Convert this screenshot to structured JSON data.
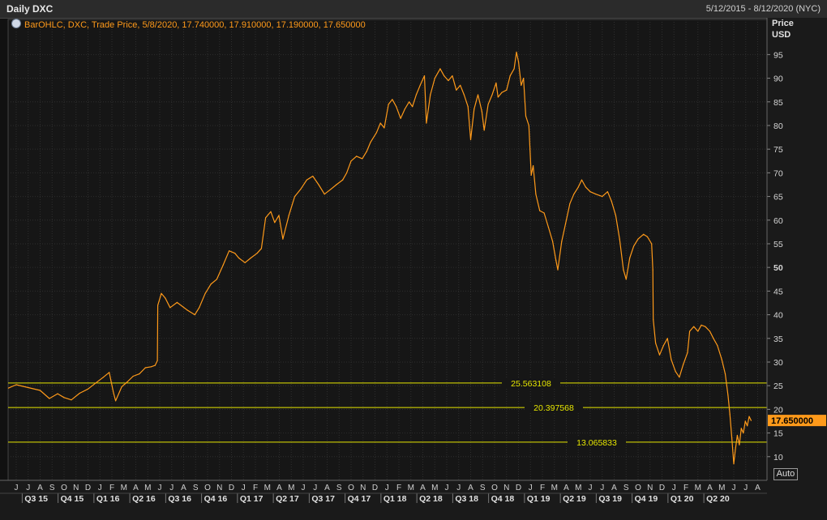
{
  "header": {
    "title": "Daily DXC",
    "date_range": "5/12/2015 - 8/12/2020 (NYC)"
  },
  "legend": {
    "text": "BarOHLC, DXC, Trade Price, 5/8/2020, 17.740000, 17.910000, 17.190000, 17.650000"
  },
  "axis": {
    "y_title_1": "Price",
    "y_title_2": "USD",
    "auto_label": "Auto"
  },
  "colors": {
    "series": "#ff9a1a",
    "hline": "#e6e600",
    "last_price_bg": "#ff9a1a"
  },
  "chart_data": {
    "type": "line",
    "ylim": [
      5,
      99
    ],
    "y_ticks": [
      10,
      15,
      20,
      25,
      30,
      35,
      40,
      45,
      50,
      55,
      60,
      65,
      70,
      75,
      80,
      85,
      90,
      95
    ],
    "x_month_labels": [
      "J",
      "J",
      "A",
      "S",
      "O",
      "N",
      "D",
      "J",
      "F",
      "M",
      "A",
      "M",
      "J",
      "J",
      "A",
      "S",
      "O",
      "N",
      "D",
      "J",
      "F",
      "M",
      "A",
      "M",
      "J",
      "J",
      "A",
      "S",
      "O",
      "N",
      "D",
      "J",
      "F",
      "M",
      "A",
      "M",
      "J",
      "J",
      "A",
      "S",
      "O",
      "N",
      "D",
      "J",
      "F",
      "M",
      "A",
      "M",
      "J",
      "J",
      "A",
      "S",
      "O",
      "N",
      "D",
      "J",
      "F",
      "M",
      "A",
      "M",
      "J",
      "J",
      "A"
    ],
    "x_quarter_labels": [
      "Q3 15",
      "Q4 15",
      "Q1 16",
      "Q2 16",
      "Q3 16",
      "Q4 16",
      "Q1 17",
      "Q2 17",
      "Q3 17",
      "Q4 17",
      "Q1 18",
      "Q2 18",
      "Q3 18",
      "Q4 18",
      "Q1 19",
      "Q2 19",
      "Q3 19",
      "Q4 19",
      "Q1 20",
      "Q2 20"
    ],
    "last_price": "17.650000",
    "horizontal_lines": [
      {
        "value": 25.563108,
        "label": "25.563108"
      },
      {
        "value": 20.397568,
        "label": "20.397568"
      },
      {
        "value": 13.065833,
        "label": "13.065833"
      }
    ],
    "series": [
      {
        "points": [
          [
            "2015-05-12",
            24.5
          ],
          [
            "2015-06-01",
            25.2
          ],
          [
            "2015-07-01",
            24.6
          ],
          [
            "2015-08-01",
            24.0
          ],
          [
            "2015-08-25",
            22.3
          ],
          [
            "2015-09-15",
            23.3
          ],
          [
            "2015-10-01",
            22.5
          ],
          [
            "2015-10-20",
            22.0
          ],
          [
            "2015-11-10",
            23.4
          ],
          [
            "2015-12-01",
            24.3
          ],
          [
            "2015-12-20",
            25.5
          ],
          [
            "2016-01-10",
            26.8
          ],
          [
            "2016-01-25",
            27.8
          ],
          [
            "2016-02-05",
            23.5
          ],
          [
            "2016-02-10",
            21.8
          ],
          [
            "2016-02-25",
            24.8
          ],
          [
            "2016-03-10",
            25.8
          ],
          [
            "2016-03-25",
            27.0
          ],
          [
            "2016-04-10",
            27.5
          ],
          [
            "2016-04-25",
            28.8
          ],
          [
            "2016-05-10",
            29.0
          ],
          [
            "2016-05-20",
            29.3
          ],
          [
            "2016-05-26",
            30.3
          ],
          [
            "2016-05-27",
            42.0
          ],
          [
            "2016-06-05",
            44.5
          ],
          [
            "2016-06-15",
            43.5
          ],
          [
            "2016-06-27",
            41.5
          ],
          [
            "2016-07-15",
            42.6
          ],
          [
            "2016-08-10",
            41.0
          ],
          [
            "2016-08-30",
            40.0
          ],
          [
            "2016-09-10",
            41.5
          ],
          [
            "2016-09-25",
            44.5
          ],
          [
            "2016-10-10",
            46.5
          ],
          [
            "2016-10-25",
            47.5
          ],
          [
            "2016-11-10",
            50.5
          ],
          [
            "2016-11-25",
            53.5
          ],
          [
            "2016-12-10",
            53.0
          ],
          [
            "2016-12-20",
            52.0
          ],
          [
            "2017-01-05",
            51.0
          ],
          [
            "2017-01-20",
            52.0
          ],
          [
            "2017-02-05",
            53.0
          ],
          [
            "2017-02-15",
            54.0
          ],
          [
            "2017-02-25",
            60.5
          ],
          [
            "2017-03-10",
            61.8
          ],
          [
            "2017-03-20",
            59.5
          ],
          [
            "2017-03-31",
            61.0
          ],
          [
            "2017-04-10",
            56.0
          ],
          [
            "2017-04-25",
            61.0
          ],
          [
            "2017-05-10",
            65.0
          ],
          [
            "2017-05-25",
            66.5
          ],
          [
            "2017-06-10",
            68.5
          ],
          [
            "2017-06-25",
            69.3
          ],
          [
            "2017-07-10",
            67.5
          ],
          [
            "2017-07-25",
            65.5
          ],
          [
            "2017-08-10",
            66.5
          ],
          [
            "2017-08-25",
            67.5
          ],
          [
            "2017-09-10",
            68.5
          ],
          [
            "2017-09-20",
            70.0
          ],
          [
            "2017-10-01",
            72.5
          ],
          [
            "2017-10-15",
            73.5
          ],
          [
            "2017-10-30",
            73.0
          ],
          [
            "2017-11-10",
            74.5
          ],
          [
            "2017-11-20",
            76.5
          ],
          [
            "2017-12-05",
            78.5
          ],
          [
            "2017-12-15",
            80.5
          ],
          [
            "2017-12-25",
            79.5
          ],
          [
            "2018-01-05",
            84.5
          ],
          [
            "2018-01-15",
            85.5
          ],
          [
            "2018-01-25",
            84.0
          ],
          [
            "2018-02-05",
            81.5
          ],
          [
            "2018-02-15",
            83.5
          ],
          [
            "2018-02-25",
            85.0
          ],
          [
            "2018-03-05",
            84.0
          ],
          [
            "2018-03-15",
            86.5
          ],
          [
            "2018-03-25",
            88.5
          ],
          [
            "2018-04-05",
            90.5
          ],
          [
            "2018-04-10",
            80.5
          ],
          [
            "2018-04-20",
            86.5
          ],
          [
            "2018-05-01",
            90.0
          ],
          [
            "2018-05-15",
            92.0
          ],
          [
            "2018-05-25",
            90.5
          ],
          [
            "2018-06-05",
            89.5
          ],
          [
            "2018-06-15",
            90.5
          ],
          [
            "2018-06-25",
            87.5
          ],
          [
            "2018-07-05",
            88.5
          ],
          [
            "2018-07-15",
            86.5
          ],
          [
            "2018-07-25",
            84.0
          ],
          [
            "2018-08-01",
            77.0
          ],
          [
            "2018-08-10",
            83.5
          ],
          [
            "2018-08-20",
            86.5
          ],
          [
            "2018-08-30",
            83.0
          ],
          [
            "2018-09-05",
            79.0
          ],
          [
            "2018-09-15",
            84.5
          ],
          [
            "2018-09-25",
            86.5
          ],
          [
            "2018-10-05",
            89.0
          ],
          [
            "2018-10-10",
            86.0
          ],
          [
            "2018-10-20",
            87.0
          ],
          [
            "2018-11-01",
            87.5
          ],
          [
            "2018-11-10",
            90.5
          ],
          [
            "2018-11-20",
            92.0
          ],
          [
            "2018-11-26",
            95.5
          ],
          [
            "2018-12-01",
            93.5
          ],
          [
            "2018-12-08",
            88.5
          ],
          [
            "2018-12-14",
            90.0
          ],
          [
            "2018-12-20",
            82.0
          ],
          [
            "2018-12-28",
            80.0
          ],
          [
            "2019-01-03",
            69.5
          ],
          [
            "2019-01-08",
            71.5
          ],
          [
            "2019-01-15",
            65.5
          ],
          [
            "2019-01-25",
            62.0
          ],
          [
            "2019-02-05",
            61.5
          ],
          [
            "2019-02-15",
            58.5
          ],
          [
            "2019-02-25",
            55.5
          ],
          [
            "2019-03-05",
            51.5
          ],
          [
            "2019-03-10",
            49.5
          ],
          [
            "2019-03-20",
            55.5
          ],
          [
            "2019-04-01",
            60.0
          ],
          [
            "2019-04-10",
            63.5
          ],
          [
            "2019-04-20",
            65.5
          ],
          [
            "2019-05-01",
            67.0
          ],
          [
            "2019-05-10",
            68.5
          ],
          [
            "2019-05-20",
            67.0
          ],
          [
            "2019-06-01",
            66.0
          ],
          [
            "2019-06-15",
            65.5
          ],
          [
            "2019-07-01",
            65.0
          ],
          [
            "2019-07-15",
            66.0
          ],
          [
            "2019-07-25",
            64.0
          ],
          [
            "2019-08-05",
            61.0
          ],
          [
            "2019-08-15",
            56.0
          ],
          [
            "2019-08-25",
            49.5
          ],
          [
            "2019-09-01",
            47.5
          ],
          [
            "2019-09-10",
            52.0
          ],
          [
            "2019-09-20",
            54.5
          ],
          [
            "2019-10-01",
            56.0
          ],
          [
            "2019-10-15",
            57.0
          ],
          [
            "2019-10-25",
            56.5
          ],
          [
            "2019-11-05",
            55.0
          ],
          [
            "2019-11-08",
            49.5
          ],
          [
            "2019-11-09",
            39.0
          ],
          [
            "2019-11-15",
            34.0
          ],
          [
            "2019-11-25",
            31.5
          ],
          [
            "2019-12-05",
            33.5
          ],
          [
            "2019-12-15",
            35.0
          ],
          [
            "2019-12-25",
            30.5
          ],
          [
            "2020-01-05",
            28.0
          ],
          [
            "2020-01-15",
            26.8
          ],
          [
            "2020-01-25",
            29.5
          ],
          [
            "2020-02-05",
            32.0
          ],
          [
            "2020-02-10",
            36.5
          ],
          [
            "2020-02-20",
            37.5
          ],
          [
            "2020-03-01",
            36.5
          ],
          [
            "2020-03-10",
            37.8
          ],
          [
            "2020-03-20",
            37.5
          ],
          [
            "2020-04-01",
            36.5
          ],
          [
            "2020-04-10",
            35.0
          ],
          [
            "2020-04-20",
            33.5
          ],
          [
            "2020-05-01",
            30.5
          ],
          [
            "2020-05-10",
            27.5
          ],
          [
            "2020-05-17",
            23.0
          ],
          [
            "2020-05-22",
            19.0
          ],
          [
            "2020-05-27",
            14.0
          ],
          [
            "2020-06-01",
            8.5
          ],
          [
            "2020-06-05",
            11.5
          ],
          [
            "2020-06-10",
            14.5
          ],
          [
            "2020-06-15",
            12.5
          ],
          [
            "2020-06-20",
            16.0
          ],
          [
            "2020-06-25",
            15.0
          ],
          [
            "2020-06-30",
            17.5
          ],
          [
            "2020-07-05",
            16.5
          ],
          [
            "2020-07-10",
            18.5
          ],
          [
            "2020-07-15",
            17.65
          ]
        ]
      }
    ]
  }
}
